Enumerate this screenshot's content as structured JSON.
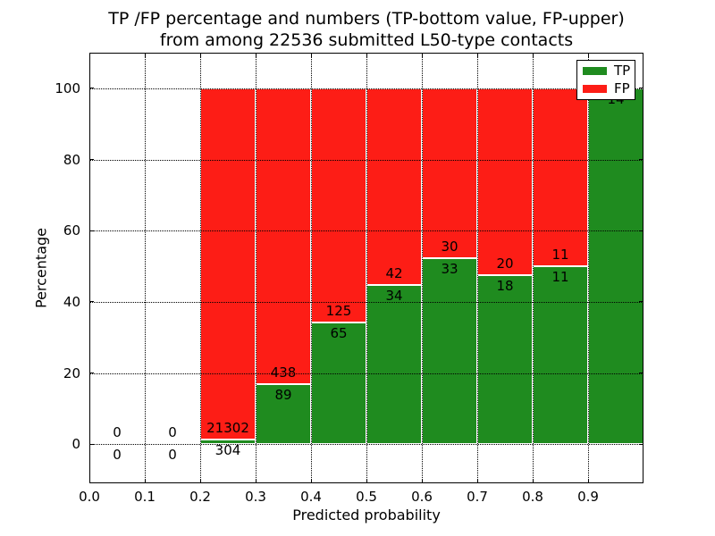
{
  "chart_data": {
    "type": "bar",
    "stacked_percentage": true,
    "title": "TP /FP percentage and numbers (TP-bottom value, FP-upper)\nfrom among 22536 submitted L50-type contacts",
    "title_line1": "TP /FP percentage and numbers (TP-bottom value, FP-upper)",
    "title_line2": "from among 22536 submitted L50-type contacts",
    "total_submitted": 22536,
    "xlabel": "Predicted probability",
    "ylabel": "Percentage",
    "xlim": [
      0.0,
      1.0
    ],
    "ylim": [
      -11,
      110
    ],
    "xtick_values": [
      0.0,
      0.1,
      0.2,
      0.3,
      0.4,
      0.5,
      0.6,
      0.7,
      0.8,
      0.9
    ],
    "xtick_labels": [
      "0.0",
      "0.1",
      "0.2",
      "0.3",
      "0.4",
      "0.5",
      "0.6",
      "0.7",
      "0.8",
      "0.9"
    ],
    "yticks": [
      0,
      20,
      40,
      60,
      80,
      100
    ],
    "grid": true,
    "grid_style": "dotted",
    "colors": {
      "tp": "#1f8b1f",
      "fp": "#fd1d16"
    },
    "legend": {
      "position": "upper right",
      "entries": [
        {
          "label": "TP",
          "color_key": "tp"
        },
        {
          "label": "FP",
          "color_key": "fp"
        }
      ]
    },
    "bins": [
      {
        "range": [
          0.0,
          0.1
        ],
        "tp_count": 0,
        "fp_count": 0,
        "bar": false
      },
      {
        "range": [
          0.1,
          0.2
        ],
        "tp_count": 0,
        "fp_count": 0,
        "bar": false
      },
      {
        "range": [
          0.2,
          0.3
        ],
        "tp_count": 304,
        "fp_count": 21302,
        "bar": true
      },
      {
        "range": [
          0.3,
          0.4
        ],
        "tp_count": 89,
        "fp_count": 438,
        "bar": true
      },
      {
        "range": [
          0.4,
          0.5
        ],
        "tp_count": 65,
        "fp_count": 125,
        "bar": true
      },
      {
        "range": [
          0.5,
          0.6
        ],
        "tp_count": 34,
        "fp_count": 42,
        "bar": true
      },
      {
        "range": [
          0.6,
          0.7
        ],
        "tp_count": 33,
        "fp_count": 30,
        "bar": true
      },
      {
        "range": [
          0.7,
          0.8
        ],
        "tp_count": 18,
        "fp_count": 20,
        "bar": true
      },
      {
        "range": [
          0.8,
          0.9
        ],
        "tp_count": 11,
        "fp_count": 11,
        "bar": true
      },
      {
        "range": [
          0.9,
          1.0
        ],
        "tp_count": 14,
        "fp_count": 0,
        "bar": true,
        "fp_label_visible": false
      }
    ]
  }
}
